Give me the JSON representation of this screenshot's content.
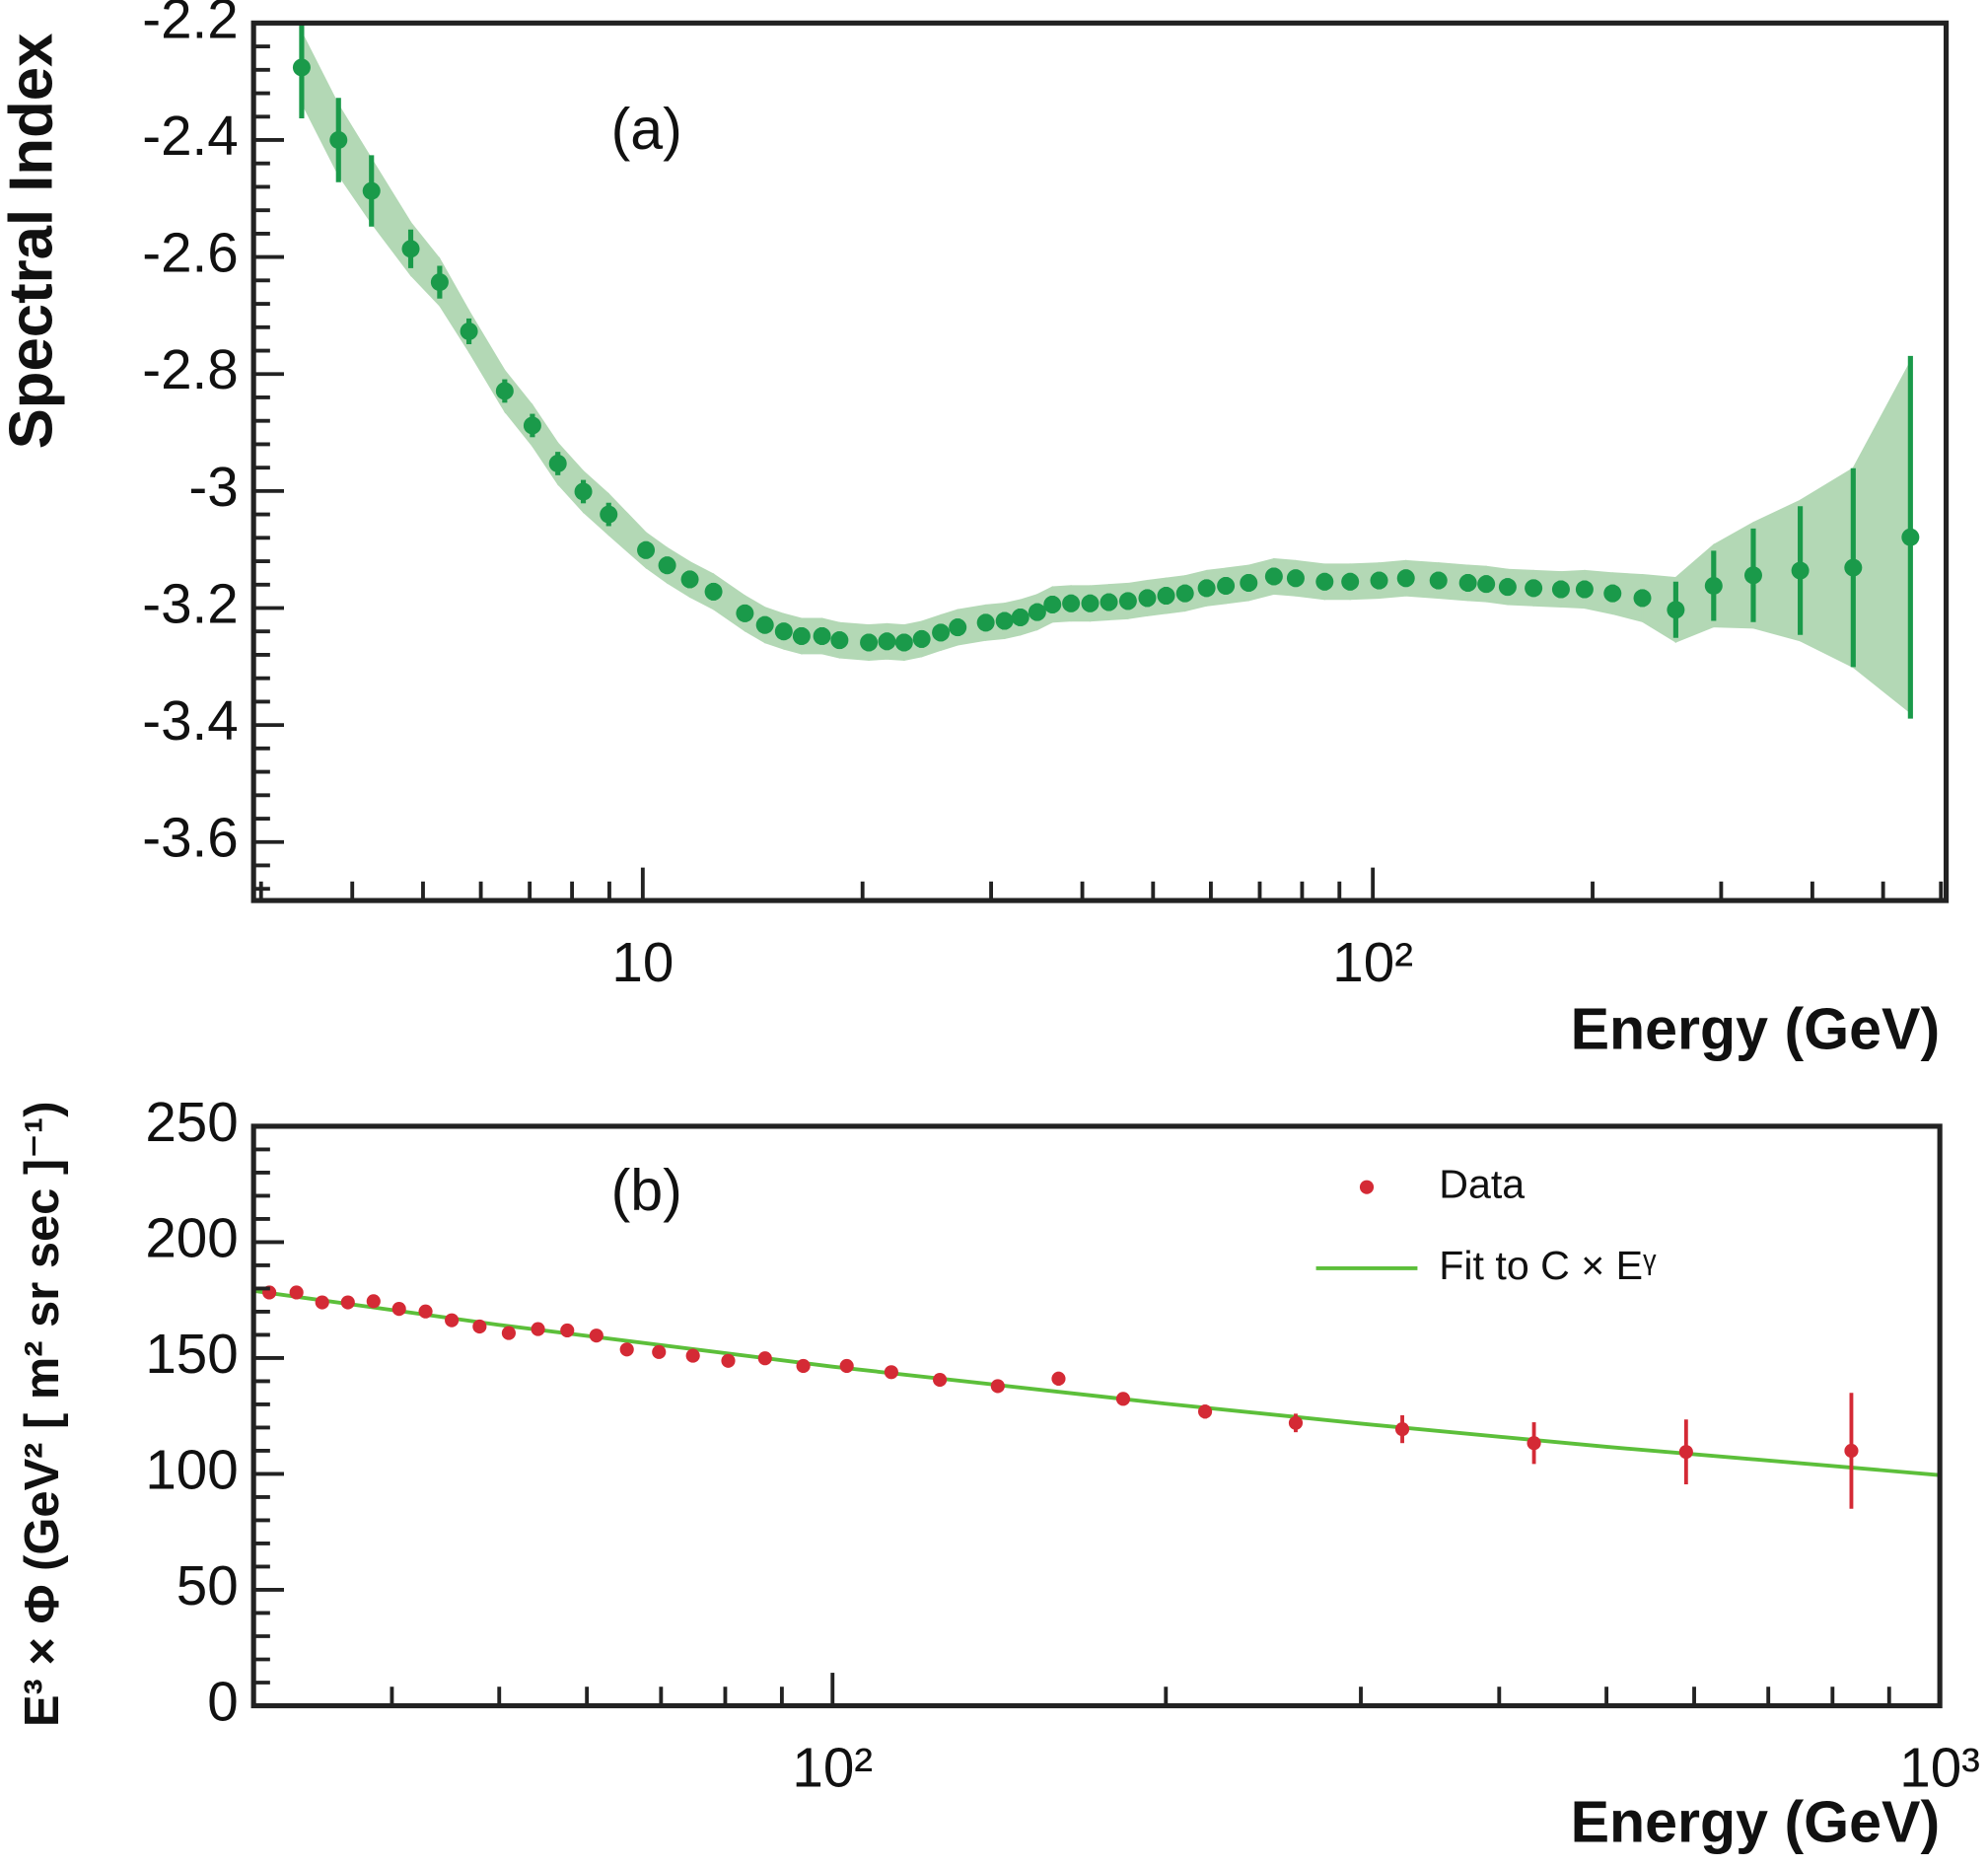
{
  "chart_data": [
    {
      "type": "scatter",
      "annotation": "(a)",
      "xlabel": "Energy (GeV)",
      "ylabel": "Spectral Index",
      "xscale": "log",
      "xlim": [
        2.93,
        610
      ],
      "ylim": [
        -3.7,
        -2.2
      ],
      "xticks": [
        10,
        {
          "value": 100,
          "label": "10²"
        }
      ],
      "yticks": [
        -3.6,
        -3.4,
        -3.2,
        -3,
        -2.8,
        -2.6,
        -2.4,
        -2.2
      ],
      "color": "#1a9a4a",
      "band_color": "#b3d8b5",
      "x": [
        3.41,
        3.83,
        4.25,
        4.81,
        5.27,
        5.78,
        6.47,
        7.06,
        7.65,
        8.29,
        8.98,
        10.1,
        10.8,
        11.6,
        12.5,
        13.8,
        14.7,
        15.6,
        16.5,
        17.6,
        18.6,
        20.4,
        21.6,
        22.8,
        24.1,
        25.6,
        27.0,
        29.5,
        31.3,
        32.9,
        34.7,
        36.4,
        38.6,
        41.0,
        43.5,
        46.2,
        49.1,
        52.1,
        55.3,
        59.2,
        62.9,
        67.6,
        73.2,
        78.4,
        85.9,
        93.1,
        102,
        111,
        123,
        135,
        143,
        153,
        166,
        181,
        195,
        213,
        234,
        260,
        293,
        332,
        385,
        455,
        545
      ],
      "values": [
        -2.276,
        -2.4,
        -2.487,
        -2.586,
        -2.643,
        -2.727,
        -2.829,
        -2.888,
        -2.953,
        -3.001,
        -3.04,
        -3.101,
        -3.127,
        -3.151,
        -3.172,
        -3.209,
        -3.229,
        -3.24,
        -3.248,
        -3.248,
        -3.255,
        -3.259,
        -3.257,
        -3.259,
        -3.253,
        -3.242,
        -3.233,
        -3.225,
        -3.222,
        -3.216,
        -3.207,
        -3.194,
        -3.192,
        -3.192,
        -3.19,
        -3.188,
        -3.183,
        -3.179,
        -3.175,
        -3.166,
        -3.162,
        -3.157,
        -3.146,
        -3.149,
        -3.155,
        -3.155,
        -3.153,
        -3.149,
        -3.153,
        -3.157,
        -3.159,
        -3.164,
        -3.166,
        -3.168,
        -3.168,
        -3.175,
        -3.183,
        -3.203,
        -3.162,
        -3.144,
        -3.136,
        -3.131,
        -3.079
      ],
      "errors": [
        0.087,
        0.072,
        0.061,
        0.033,
        0.028,
        0.022,
        0.02,
        0.02,
        0.02,
        0.02,
        0.02,
        0.015,
        0.015,
        0.015,
        0.015,
        0.015,
        0.015,
        0.015,
        0.015,
        0.015,
        0.015,
        0.015,
        0.015,
        0.015,
        0.015,
        0.015,
        0.015,
        0.015,
        0.015,
        0.015,
        0.015,
        0.015,
        0.015,
        0.015,
        0.015,
        0.015,
        0.015,
        0.015,
        0.015,
        0.015,
        0.015,
        0.015,
        0.015,
        0.015,
        0.015,
        0.015,
        0.015,
        0.015,
        0.015,
        0.015,
        0.015,
        0.015,
        0.015,
        0.015,
        0.015,
        0.015,
        0.015,
        0.048,
        0.06,
        0.08,
        0.11,
        0.17,
        0.31
      ],
      "band_errors": [
        0.06,
        0.06,
        0.055,
        0.045,
        0.04,
        0.035,
        0.035,
        0.035,
        0.035,
        0.035,
        0.035,
        0.03,
        0.03,
        0.03,
        0.03,
        0.03,
        0.03,
        0.03,
        0.03,
        0.03,
        0.03,
        0.03,
        0.03,
        0.03,
        0.03,
        0.03,
        0.03,
        0.03,
        0.03,
        0.03,
        0.03,
        0.03,
        0.03,
        0.03,
        0.03,
        0.03,
        0.03,
        0.03,
        0.03,
        0.03,
        0.03,
        0.03,
        0.03,
        0.03,
        0.03,
        0.03,
        0.03,
        0.03,
        0.03,
        0.03,
        0.03,
        0.03,
        0.03,
        0.03,
        0.032,
        0.035,
        0.04,
        0.055,
        0.07,
        0.09,
        0.12,
        0.17,
        0.3
      ]
    },
    {
      "type": "scatter",
      "annotation": "(b)",
      "xlabel": "Energy (GeV)",
      "ylabel": "E³ × Φ (GeV² [ m² sr  sec ]⁻¹)",
      "xscale": "log",
      "xlim": [
        30,
        1000
      ],
      "ylim": [
        0,
        250
      ],
      "xticks": [
        {
          "value": 100,
          "label": "10²"
        },
        {
          "value": 1000,
          "label": "10³"
        }
      ],
      "yticks": [
        0,
        50,
        100,
        150,
        200,
        250
      ],
      "legend": "upper right",
      "series": [
        {
          "name": "Data",
          "type": "scatter",
          "color": "#d42a35",
          "x": [
            31.0,
            32.8,
            34.6,
            36.5,
            38.5,
            40.6,
            42.9,
            45.3,
            48.0,
            51.0,
            54.2,
            57.6,
            61.2,
            65.2,
            69.7,
            74.8,
            80.5,
            86.9,
            94.1,
            103,
            113,
            125,
            141,
            160,
            183,
            217,
            262,
            327,
            430,
            590,
            832
          ],
          "values": [
            178.3,
            178.3,
            174,
            174,
            174.5,
            171.2,
            170.1,
            166.3,
            163.6,
            160.8,
            162.5,
            161.9,
            159.7,
            153.7,
            152.6,
            151,
            148.8,
            149.9,
            146.6,
            146.6,
            143.9,
            140.6,
            137.9,
            141.1,
            132.4,
            126.9,
            122,
            119.3,
            113.3,
            109.5,
            110
          ],
          "errors": [
            1.5,
            1.5,
            1.5,
            1.5,
            1.5,
            1.5,
            1.5,
            1.5,
            1.5,
            1.5,
            1.5,
            1.5,
            1.5,
            1.5,
            1.5,
            1.5,
            1.5,
            1.5,
            1.5,
            1.5,
            1.5,
            1.5,
            2,
            3,
            2.5,
            3,
            4,
            6,
            9,
            14,
            25
          ]
        },
        {
          "name": "Fit to C × Eᵞ",
          "type": "line",
          "color": "#5cbf3a",
          "x": [
            30,
            50,
            100,
            200,
            300,
            500,
            1000
          ],
          "values": [
            179,
            164.3,
            146.3,
            130.3,
            121.7,
            111.7,
            99.5
          ]
        }
      ]
    }
  ]
}
